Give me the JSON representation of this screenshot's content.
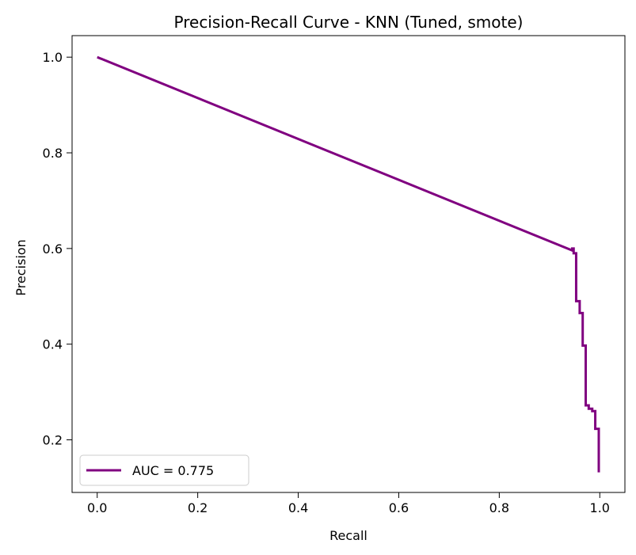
{
  "chart_data": {
    "type": "line",
    "title": "Precision-Recall Curve - KNN (Tuned, smote)",
    "xlabel": "Recall",
    "ylabel": "Precision",
    "xlim": [
      -0.05,
      1.05
    ],
    "ylim": [
      0.09,
      1.045
    ],
    "x_ticks": [
      0.0,
      0.2,
      0.4,
      0.6,
      0.8,
      1.0
    ],
    "x_tick_labels": [
      "0.0",
      "0.2",
      "0.4",
      "0.6",
      "0.8",
      "1.0"
    ],
    "y_ticks": [
      0.2,
      0.4,
      0.6,
      0.8,
      1.0
    ],
    "y_tick_labels": [
      "0.2",
      "0.4",
      "0.6",
      "0.8",
      "1.0"
    ],
    "grid": false,
    "legend_position": "lower-left",
    "series": [
      {
        "name": "AUC = 0.775",
        "color": "#800080",
        "points": [
          [
            0.0,
            1.0
          ],
          [
            0.945,
            0.596
          ],
          [
            0.945,
            0.6
          ],
          [
            0.948,
            0.6
          ],
          [
            0.948,
            0.59
          ],
          [
            0.953,
            0.59
          ],
          [
            0.953,
            0.49
          ],
          [
            0.96,
            0.49
          ],
          [
            0.96,
            0.465
          ],
          [
            0.966,
            0.465
          ],
          [
            0.966,
            0.397
          ],
          [
            0.972,
            0.397
          ],
          [
            0.972,
            0.272
          ],
          [
            0.978,
            0.272
          ],
          [
            0.978,
            0.265
          ],
          [
            0.985,
            0.265
          ],
          [
            0.985,
            0.26
          ],
          [
            0.991,
            0.26
          ],
          [
            0.991,
            0.223
          ],
          [
            0.998,
            0.223
          ],
          [
            0.998,
            0.132
          ]
        ]
      }
    ]
  }
}
